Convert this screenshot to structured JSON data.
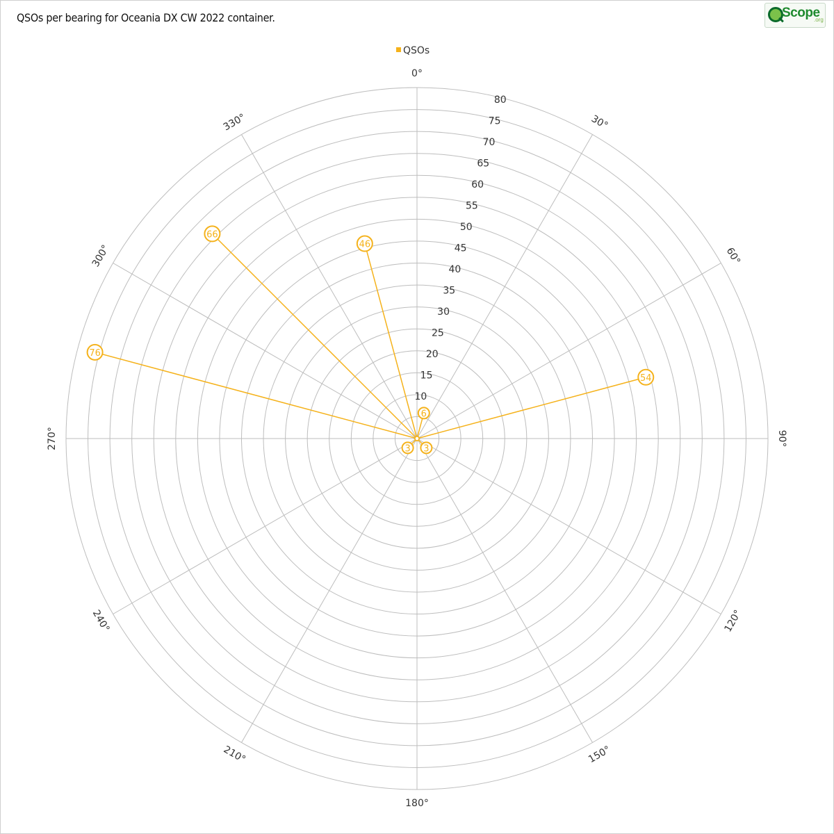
{
  "title": "QSOs per bearing for Oceania DX CW 2022 container.",
  "logo": {
    "text": "Scope",
    "suffix": ".org"
  },
  "chart_data": {
    "type": "radar",
    "title": "QSOs per bearing for Oceania DX CW 2022 container.",
    "angle_unit": "°",
    "angle_ticks": [
      0,
      30,
      60,
      90,
      120,
      150,
      180,
      210,
      240,
      270,
      300,
      330
    ],
    "radial_ticks": [
      10,
      15,
      20,
      25,
      30,
      35,
      40,
      45,
      50,
      55,
      60,
      65,
      70,
      75,
      80
    ],
    "rlim": [
      0,
      80
    ],
    "grid": true,
    "legend": "top-center",
    "series": [
      {
        "name": "QSOs",
        "color": "#f5b21b",
        "points": [
          {
            "bearing": 0,
            "value": 0
          },
          {
            "bearing": 15,
            "value": 6
          },
          {
            "bearing": 30,
            "value": 0
          },
          {
            "bearing": 45,
            "value": 0
          },
          {
            "bearing": 60,
            "value": 0
          },
          {
            "bearing": 75,
            "value": 54
          },
          {
            "bearing": 90,
            "value": 0
          },
          {
            "bearing": 105,
            "value": 0
          },
          {
            "bearing": 120,
            "value": 0
          },
          {
            "bearing": 135,
            "value": 3
          },
          {
            "bearing": 150,
            "value": 0
          },
          {
            "bearing": 165,
            "value": 0
          },
          {
            "bearing": 180,
            "value": 0
          },
          {
            "bearing": 195,
            "value": 0
          },
          {
            "bearing": 210,
            "value": 0
          },
          {
            "bearing": 225,
            "value": 3
          },
          {
            "bearing": 240,
            "value": 0
          },
          {
            "bearing": 255,
            "value": 0
          },
          {
            "bearing": 270,
            "value": 0
          },
          {
            "bearing": 285,
            "value": 76
          },
          {
            "bearing": 300,
            "value": 0
          },
          {
            "bearing": 315,
            "value": 66
          },
          {
            "bearing": 330,
            "value": 0
          },
          {
            "bearing": 345,
            "value": 46
          }
        ]
      }
    ]
  }
}
